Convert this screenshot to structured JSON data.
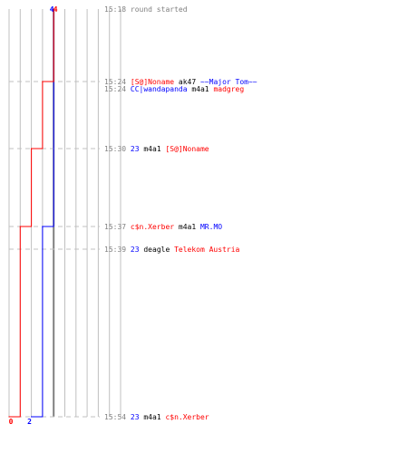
{
  "colors": {
    "team_a": "#0000ff",
    "team_b": "#ff0000",
    "time": "#808080",
    "event": "#808080",
    "weapon": "#000000",
    "grid": "#c0c0c0",
    "divider": "#808080",
    "dashed": "#c0c0c0"
  },
  "chart_data": {
    "type": "line",
    "series": [
      {
        "team": "team_a",
        "points": [
          [
            0,
            4
          ],
          [
            1,
            4
          ],
          [
            5,
            3
          ],
          [
            9,
            2
          ]
        ]
      },
      {
        "team": "team_b",
        "points": [
          [
            0,
            4
          ],
          [
            1,
            3
          ],
          [
            3,
            2
          ],
          [
            5,
            1
          ],
          [
            9,
            0
          ]
        ]
      }
    ],
    "ylim": [
      0,
      10
    ],
    "top_labels": [
      {
        "text": "4",
        "team": "team_a",
        "value": 4
      },
      {
        "text": "4",
        "team": "team_b",
        "value": 4
      }
    ],
    "bottom_labels": [
      {
        "text": "2",
        "team": "team_a",
        "value": 2
      },
      {
        "text": "0",
        "team": "team_b",
        "value": 0
      }
    ]
  },
  "log": [
    {
      "step": 0,
      "time": "15:18",
      "parts": [
        {
          "text": "round started",
          "role": "event"
        }
      ]
    },
    {
      "step": 1,
      "time": "15:24",
      "parts": [
        {
          "text": "[S@]Noname",
          "role": "team_b"
        },
        {
          "text": "ak47",
          "role": "weapon"
        },
        {
          "text": "~~Major Tom~~",
          "role": "team_a"
        }
      ]
    },
    {
      "step": 2,
      "time": "15:24",
      "parts": [
        {
          "text": "CC|wandapanda",
          "role": "team_a"
        },
        {
          "text": "m4a1",
          "role": "weapon"
        },
        {
          "text": "madgreg",
          "role": "team_b"
        }
      ]
    },
    {
      "step": 3,
      "time": "15:30",
      "parts": [
        {
          "text": "23",
          "role": "team_a"
        },
        {
          "text": "m4a1",
          "role": "weapon"
        },
        {
          "text": "[S@]Noname",
          "role": "team_b"
        }
      ]
    },
    {
      "step": 5,
      "time": "15:37",
      "parts": [
        {
          "text": "c$n.Xerber",
          "role": "team_b"
        },
        {
          "text": "m4a1",
          "role": "weapon"
        },
        {
          "text": "MR.MO",
          "role": "team_a"
        }
      ]
    },
    {
      "step": 6,
      "time": "15:39",
      "parts": [
        {
          "text": "23",
          "role": "team_a"
        },
        {
          "text": "deagle",
          "role": "weapon"
        },
        {
          "text": "Telekom Austria",
          "role": "team_b"
        }
      ]
    },
    {
      "step": 9,
      "time": "15:54",
      "parts": [
        {
          "text": "23",
          "role": "team_a"
        },
        {
          "text": "m4a1",
          "role": "weapon"
        },
        {
          "text": "c$n.Xerber",
          "role": "team_b"
        }
      ]
    }
  ]
}
